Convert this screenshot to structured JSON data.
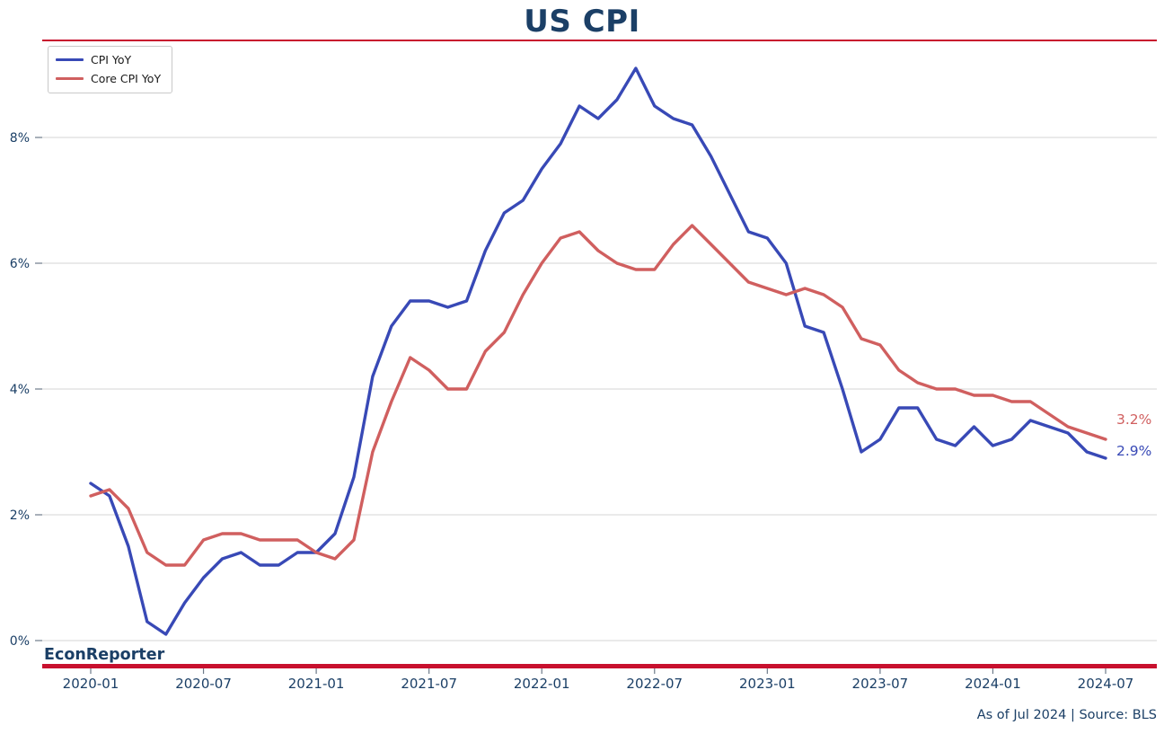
{
  "header": {
    "title": "US CPI"
  },
  "legend": {
    "items": [
      {
        "label": "CPI YoY",
        "color": "#3849b6"
      },
      {
        "label": "Core CPI YoY",
        "color": "#d05f5f"
      }
    ]
  },
  "branding": {
    "name": "EconReporter"
  },
  "footer": {
    "note": "As of Jul 2024 | Source: BLS"
  },
  "annotations": [
    {
      "text": "3.2%",
      "series": "Core CPI YoY",
      "color": "#d05f5f"
    },
    {
      "text": "2.9%",
      "series": "CPI YoY",
      "color": "#3849b6"
    }
  ],
  "colors": {
    "navy_text": "#1b3f66",
    "crimson_rule": "#c8102e",
    "cpi_line": "#3849b6",
    "core_cpi_line": "#d05f5f",
    "gridline": "#d5d5d5",
    "tick": "#6e7b8a",
    "background": "#ffffff"
  },
  "chart_data": {
    "type": "line",
    "title": "US CPI",
    "xlabel": "",
    "ylabel": "",
    "grid": "horizontal",
    "legend_position": "upper-left",
    "ylim": [
      -0.4,
      9.4
    ],
    "x": [
      "2020-01",
      "2020-02",
      "2020-03",
      "2020-04",
      "2020-05",
      "2020-06",
      "2020-07",
      "2020-08",
      "2020-09",
      "2020-10",
      "2020-11",
      "2020-12",
      "2021-01",
      "2021-02",
      "2021-03",
      "2021-04",
      "2021-05",
      "2021-06",
      "2021-07",
      "2021-08",
      "2021-09",
      "2021-10",
      "2021-11",
      "2021-12",
      "2022-01",
      "2022-02",
      "2022-03",
      "2022-04",
      "2022-05",
      "2022-06",
      "2022-07",
      "2022-08",
      "2022-09",
      "2022-10",
      "2022-11",
      "2022-12",
      "2023-01",
      "2023-02",
      "2023-03",
      "2023-04",
      "2023-05",
      "2023-06",
      "2023-07",
      "2023-08",
      "2023-09",
      "2023-10",
      "2023-11",
      "2023-12",
      "2024-01",
      "2024-02",
      "2024-03",
      "2024-04",
      "2024-05",
      "2024-06",
      "2024-07"
    ],
    "series": [
      {
        "name": "CPI YoY",
        "color": "#3849b6",
        "values": [
          2.5,
          2.3,
          1.5,
          0.3,
          0.1,
          0.6,
          1.0,
          1.3,
          1.4,
          1.2,
          1.2,
          1.4,
          1.4,
          1.7,
          2.6,
          4.2,
          5.0,
          5.4,
          5.4,
          5.3,
          5.4,
          6.2,
          6.8,
          7.0,
          7.5,
          7.9,
          8.5,
          8.3,
          8.6,
          9.1,
          8.5,
          8.3,
          8.2,
          7.7,
          7.1,
          6.5,
          6.4,
          6.0,
          5.0,
          4.9,
          4.0,
          3.0,
          3.2,
          3.7,
          3.7,
          3.2,
          3.1,
          3.4,
          3.1,
          3.2,
          3.5,
          3.4,
          3.3,
          3.0,
          2.9
        ]
      },
      {
        "name": "Core CPI YoY",
        "color": "#d05f5f",
        "values": [
          2.3,
          2.4,
          2.1,
          1.4,
          1.2,
          1.2,
          1.6,
          1.7,
          1.7,
          1.6,
          1.6,
          1.6,
          1.4,
          1.3,
          1.6,
          3.0,
          3.8,
          4.5,
          4.3,
          4.0,
          4.0,
          4.6,
          4.9,
          5.5,
          6.0,
          6.4,
          6.5,
          6.2,
          6.0,
          5.9,
          5.9,
          6.3,
          6.6,
          6.3,
          6.0,
          5.7,
          5.6,
          5.5,
          5.6,
          5.5,
          5.3,
          4.8,
          4.7,
          4.3,
          4.1,
          4.0,
          4.0,
          3.9,
          3.9,
          3.8,
          3.8,
          3.6,
          3.4,
          3.3,
          3.2
        ]
      }
    ],
    "xticks": [
      "2020-01",
      "2020-07",
      "2021-01",
      "2021-07",
      "2022-01",
      "2022-07",
      "2023-01",
      "2023-07",
      "2024-01",
      "2024-07"
    ],
    "yticks": [
      "0%",
      "2%",
      "4%",
      "6%",
      "8%"
    ]
  }
}
